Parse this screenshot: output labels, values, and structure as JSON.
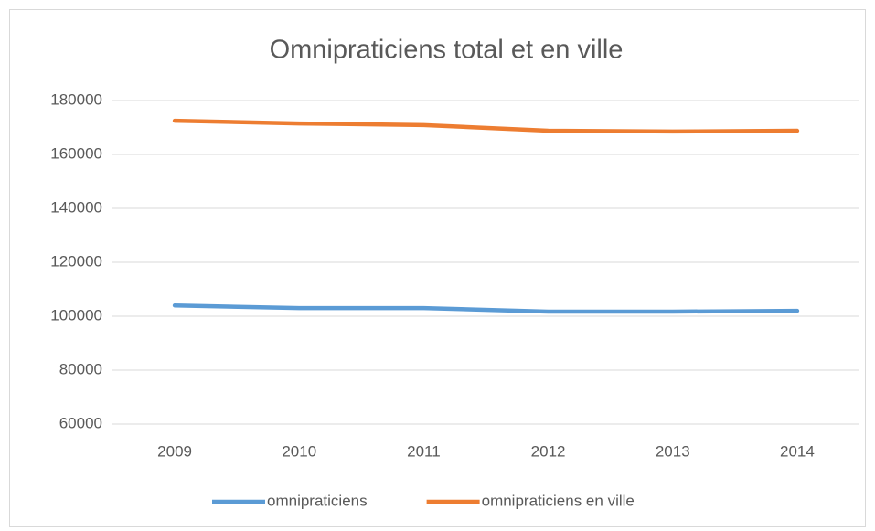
{
  "chart_data": {
    "type": "line",
    "title": "Omnipraticiens total et en ville",
    "categories": [
      "2009",
      "2010",
      "2011",
      "2012",
      "2013",
      "2014"
    ],
    "series": [
      {
        "name": "omnipraticiens",
        "color": "#5b9bd5",
        "values": [
          104000,
          103000,
          103000,
          101700,
          101700,
          102000
        ]
      },
      {
        "name": "omnipraticiens en ville",
        "color": "#ed7d31",
        "values": [
          172500,
          171500,
          170900,
          168800,
          168500,
          168800
        ]
      }
    ],
    "ylim": [
      60000,
      180000
    ],
    "yticks": [
      60000,
      80000,
      100000,
      120000,
      140000,
      160000,
      180000
    ],
    "grid": true,
    "legend": "bottom"
  }
}
